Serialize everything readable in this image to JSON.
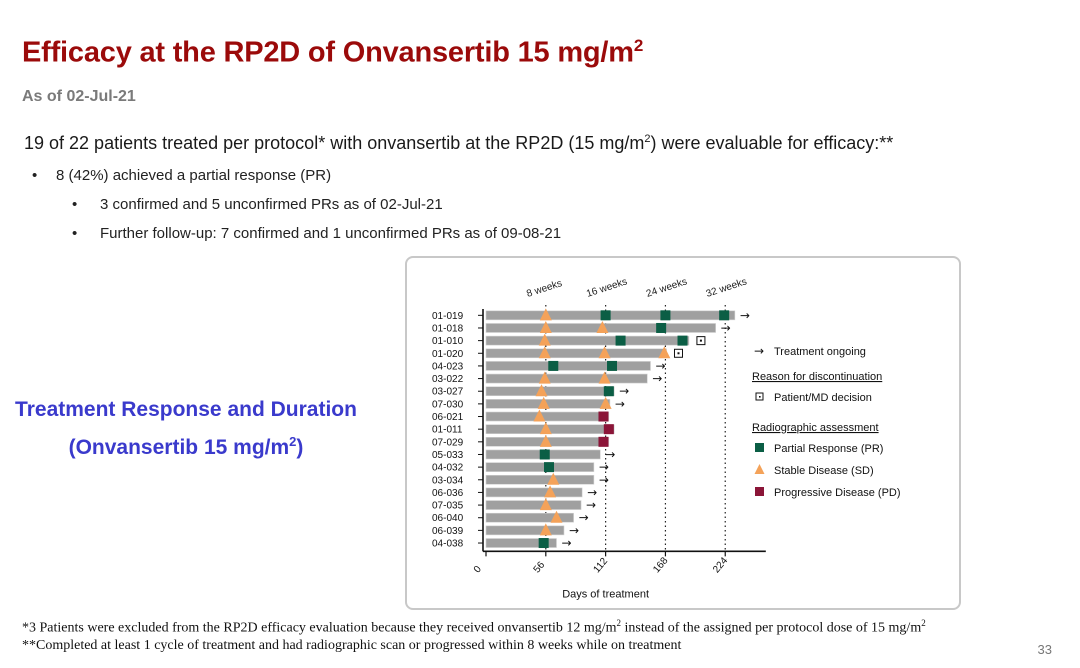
{
  "slide": {
    "title": "Efficacy at the RP2D of Onvansertib 15 mg/m",
    "title_sup": "2",
    "subtitle": "As of 02-Jul-21",
    "intro_pre": "19 of 22 patients treated per protocol* with onvansertib at the RP2D (15 mg/m",
    "intro_sup": "2",
    "intro_post": ") were evaluable for efficacy:**",
    "bullets": [
      {
        "symbol": "•",
        "text": "8 (42%) achieved a partial response (PR)"
      },
      {
        "symbol": "•",
        "text": "3 confirmed and 5 unconfirmed PRs as of 02-Jul-21"
      },
      {
        "symbol": "•",
        "text": "Further follow-up: 7 confirmed and 1 unconfirmed PRs as of 09-08-21"
      }
    ],
    "side_title_line1": "Treatment Response and Duration",
    "side_title_line2_pre": "(Onvansertib 15 mg/m",
    "side_title_line2_sup": "2",
    "side_title_line2_post": ")",
    "footnote1_pre": "*3 Patients were excluded from the RP2D efficacy evaluation because they received onvansertib 12 mg/m",
    "footnote1_sup1": "2",
    "footnote1_mid": " instead of the assigned per protocol dose of 15 mg/m",
    "footnote1_sup2": "2",
    "footnote2": "**Completed at least 1 cycle of treatment and had radiographic scan or progressed within 8 weeks while on treatment",
    "page_number": "33"
  },
  "colors": {
    "title": "#9b0a0a",
    "side_title": "#3a3acc",
    "bar": "#a0a0a0",
    "pr": "#0b5e45",
    "sd": "#f4a259",
    "pd": "#8b1538"
  },
  "chart_data": {
    "type": "swimmer",
    "xlabel": "Days of treatment",
    "xlim": [
      0,
      260
    ],
    "xticks": [
      0,
      56,
      112,
      168,
      224
    ],
    "reference_lines": [
      {
        "x": 56,
        "label": "8 weeks"
      },
      {
        "x": 112,
        "label": "16 weeks"
      },
      {
        "x": 168,
        "label": "24 weeks"
      },
      {
        "x": 224,
        "label": "32 weeks"
      }
    ],
    "legend": {
      "ongoing_label": "Treatment ongoing",
      "discontinuation_header": "Reason for discontinuation",
      "patient_decision_label": "Patient/MD decision",
      "assessment_header": "Radiographic assessment",
      "pr_label": "Partial Response (PR)",
      "sd_label": "Stable Disease (SD)",
      "pd_label": "Progressive Disease (PD)"
    },
    "patients": [
      {
        "id": "01-019",
        "duration": 233,
        "end": "ongoing",
        "assessments": [
          {
            "day": 56,
            "type": "SD"
          },
          {
            "day": 112,
            "type": "PR"
          },
          {
            "day": 168,
            "type": "PR"
          },
          {
            "day": 223,
            "type": "PR"
          }
        ]
      },
      {
        "id": "01-018",
        "duration": 215,
        "end": "ongoing",
        "assessments": [
          {
            "day": 56,
            "type": "SD"
          },
          {
            "day": 109,
            "type": "SD"
          },
          {
            "day": 164,
            "type": "PR"
          }
        ]
      },
      {
        "id": "01-010",
        "duration": 190,
        "end": "patient_decision",
        "assessments": [
          {
            "day": 55,
            "type": "SD"
          },
          {
            "day": 126,
            "type": "PR"
          },
          {
            "day": 184,
            "type": "PR"
          }
        ]
      },
      {
        "id": "01-020",
        "duration": 169,
        "end": "patient_decision",
        "assessments": [
          {
            "day": 55,
            "type": "SD"
          },
          {
            "day": 111,
            "type": "SD"
          },
          {
            "day": 167,
            "type": "SD"
          }
        ]
      },
      {
        "id": "04-023",
        "duration": 154,
        "end": "ongoing",
        "assessments": [
          {
            "day": 63,
            "type": "PR"
          },
          {
            "day": 118,
            "type": "PR"
          }
        ]
      },
      {
        "id": "03-022",
        "duration": 151,
        "end": "ongoing",
        "assessments": [
          {
            "day": 55,
            "type": "SD"
          },
          {
            "day": 111,
            "type": "SD"
          }
        ]
      },
      {
        "id": "03-027",
        "duration": 120,
        "end": "ongoing",
        "assessments": [
          {
            "day": 52,
            "type": "SD"
          },
          {
            "day": 115,
            "type": "PR"
          }
        ]
      },
      {
        "id": "07-030",
        "duration": 116,
        "end": "ongoing",
        "assessments": [
          {
            "day": 54,
            "type": "SD"
          },
          {
            "day": 112,
            "type": "SD"
          }
        ]
      },
      {
        "id": "06-021",
        "duration": 115,
        "end": "none",
        "assessments": [
          {
            "day": 50,
            "type": "SD"
          },
          {
            "day": 110,
            "type": "PD"
          }
        ]
      },
      {
        "id": "01-011",
        "duration": 120,
        "end": "none",
        "assessments": [
          {
            "day": 56,
            "type": "SD"
          },
          {
            "day": 115,
            "type": "PD"
          }
        ]
      },
      {
        "id": "07-029",
        "duration": 115,
        "end": "none",
        "assessments": [
          {
            "day": 56,
            "type": "SD"
          },
          {
            "day": 110,
            "type": "PD"
          }
        ]
      },
      {
        "id": "05-033",
        "duration": 107,
        "end": "ongoing",
        "assessments": [
          {
            "day": 55,
            "type": "PR"
          }
        ]
      },
      {
        "id": "04-032",
        "duration": 101,
        "end": "ongoing",
        "assessments": [
          {
            "day": 59,
            "type": "PR"
          }
        ]
      },
      {
        "id": "03-034",
        "duration": 101,
        "end": "ongoing",
        "assessments": [
          {
            "day": 63,
            "type": "SD"
          }
        ]
      },
      {
        "id": "06-036",
        "duration": 90,
        "end": "ongoing",
        "assessments": [
          {
            "day": 60,
            "type": "SD"
          }
        ]
      },
      {
        "id": "07-035",
        "duration": 89,
        "end": "ongoing",
        "assessments": [
          {
            "day": 56,
            "type": "SD"
          }
        ]
      },
      {
        "id": "06-040",
        "duration": 82,
        "end": "ongoing",
        "assessments": [
          {
            "day": 66,
            "type": "SD"
          }
        ]
      },
      {
        "id": "06-039",
        "duration": 73,
        "end": "ongoing",
        "assessments": [
          {
            "day": 56,
            "type": "SD"
          }
        ]
      },
      {
        "id": "04-038",
        "duration": 66,
        "end": "ongoing",
        "assessments": [
          {
            "day": 54,
            "type": "PR"
          }
        ]
      }
    ]
  }
}
